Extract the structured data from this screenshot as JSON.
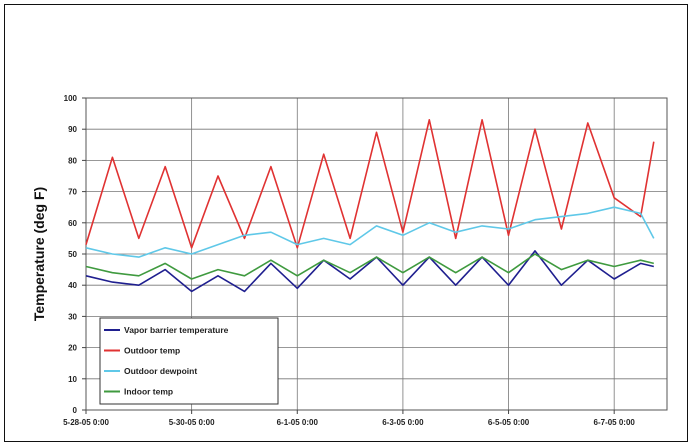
{
  "chart_data": {
    "type": "line",
    "title": "",
    "ylabel": "Temperature (deg F)",
    "xlabel": "",
    "ylim": [
      0,
      100
    ],
    "yticks": [
      0,
      10,
      20,
      30,
      40,
      50,
      60,
      70,
      80,
      90,
      100
    ],
    "xlim": [
      "5-28-05 0:00",
      "6-8-05 0:00"
    ],
    "x_tick_labels": [
      "5-28-05 0:00",
      "5-30-05 0:00",
      "6-1-05 0:00",
      "6-3-05 0:00",
      "6-5-05 0:00",
      "6-7-05 0:00"
    ],
    "grid": "major gridlines on both axes",
    "legend": "bottom-left, inside plot",
    "series": [
      {
        "name": "Vapor barrier temperature",
        "color": "#1f1f8f",
        "points": [
          [
            "5-28-05 0:00",
            43
          ],
          [
            "5-28-05 12:00",
            41
          ],
          [
            "5-29-05 0:00",
            40
          ],
          [
            "5-29-05 12:00",
            45
          ],
          [
            "5-30-05 0:00",
            38
          ],
          [
            "5-30-05 12:00",
            43
          ],
          [
            "5-31-05 0:00",
            38
          ],
          [
            "5-31-05 12:00",
            47
          ],
          [
            "6-1-05 0:00",
            39
          ],
          [
            "6-1-05 12:00",
            48
          ],
          [
            "6-2-05 0:00",
            42
          ],
          [
            "6-2-05 12:00",
            49
          ],
          [
            "6-3-05 0:00",
            40
          ],
          [
            "6-3-05 12:00",
            49
          ],
          [
            "6-4-05 0:00",
            40
          ],
          [
            "6-4-05 12:00",
            49
          ],
          [
            "6-5-05 0:00",
            40
          ],
          [
            "6-5-05 12:00",
            51
          ],
          [
            "6-6-05 0:00",
            40
          ],
          [
            "6-6-05 12:00",
            48
          ],
          [
            "6-7-05 0:00",
            42
          ],
          [
            "6-7-05 12:00",
            47
          ],
          [
            "6-7-05 18:00",
            46
          ]
        ]
      },
      {
        "name": "Outdoor temp",
        "color": "#e03232",
        "points": [
          [
            "5-28-05 0:00",
            53
          ],
          [
            "5-28-05 12:00",
            81
          ],
          [
            "5-29-05 0:00",
            55
          ],
          [
            "5-29-05 12:00",
            78
          ],
          [
            "5-30-05 0:00",
            52
          ],
          [
            "5-30-05 12:00",
            75
          ],
          [
            "5-31-05 0:00",
            55
          ],
          [
            "5-31-05 12:00",
            78
          ],
          [
            "6-1-05 0:00",
            52
          ],
          [
            "6-1-05 12:00",
            82
          ],
          [
            "6-2-05 0:00",
            55
          ],
          [
            "6-2-05 12:00",
            89
          ],
          [
            "6-3-05 0:00",
            57
          ],
          [
            "6-3-05 12:00",
            93
          ],
          [
            "6-4-05 0:00",
            55
          ],
          [
            "6-4-05 12:00",
            93
          ],
          [
            "6-5-05 0:00",
            56
          ],
          [
            "6-5-05 12:00",
            90
          ],
          [
            "6-6-05 0:00",
            58
          ],
          [
            "6-6-05 12:00",
            92
          ],
          [
            "6-7-05 0:00",
            68
          ],
          [
            "6-7-05 12:00",
            62
          ],
          [
            "6-7-05 18:00",
            86
          ]
        ]
      },
      {
        "name": "Outdoor dewpoint",
        "color": "#5fc8e8",
        "points": [
          [
            "5-28-05 0:00",
            52
          ],
          [
            "5-28-05 12:00",
            50
          ],
          [
            "5-29-05 0:00",
            49
          ],
          [
            "5-29-05 12:00",
            52
          ],
          [
            "5-30-05 0:00",
            50
          ],
          [
            "5-30-05 12:00",
            53
          ],
          [
            "5-31-05 0:00",
            56
          ],
          [
            "5-31-05 12:00",
            57
          ],
          [
            "6-1-05 0:00",
            53
          ],
          [
            "6-1-05 12:00",
            55
          ],
          [
            "6-2-05 0:00",
            53
          ],
          [
            "6-2-05 12:00",
            59
          ],
          [
            "6-3-05 0:00",
            56
          ],
          [
            "6-3-05 12:00",
            60
          ],
          [
            "6-4-05 0:00",
            57
          ],
          [
            "6-4-05 12:00",
            59
          ],
          [
            "6-5-05 0:00",
            58
          ],
          [
            "6-5-05 12:00",
            61
          ],
          [
            "6-6-05 0:00",
            62
          ],
          [
            "6-6-05 12:00",
            63
          ],
          [
            "6-7-05 0:00",
            65
          ],
          [
            "6-7-05 12:00",
            63
          ],
          [
            "6-7-05 18:00",
            55
          ]
        ]
      },
      {
        "name": "Indoor temp",
        "color": "#3f9a3f",
        "points": [
          [
            "5-28-05 0:00",
            46
          ],
          [
            "5-28-05 12:00",
            44
          ],
          [
            "5-29-05 0:00",
            43
          ],
          [
            "5-29-05 12:00",
            47
          ],
          [
            "5-30-05 0:00",
            42
          ],
          [
            "5-30-05 12:00",
            45
          ],
          [
            "5-31-05 0:00",
            43
          ],
          [
            "5-31-05 12:00",
            48
          ],
          [
            "6-1-05 0:00",
            43
          ],
          [
            "6-1-05 12:00",
            48
          ],
          [
            "6-2-05 0:00",
            44
          ],
          [
            "6-2-05 12:00",
            49
          ],
          [
            "6-3-05 0:00",
            44
          ],
          [
            "6-3-05 12:00",
            49
          ],
          [
            "6-4-05 0:00",
            44
          ],
          [
            "6-4-05 12:00",
            49
          ],
          [
            "6-5-05 0:00",
            44
          ],
          [
            "6-5-05 12:00",
            50
          ],
          [
            "6-6-05 0:00",
            45
          ],
          [
            "6-6-05 12:00",
            48
          ],
          [
            "6-7-05 0:00",
            46
          ],
          [
            "6-7-05 12:00",
            48
          ],
          [
            "6-7-05 18:00",
            47
          ]
        ]
      }
    ]
  }
}
